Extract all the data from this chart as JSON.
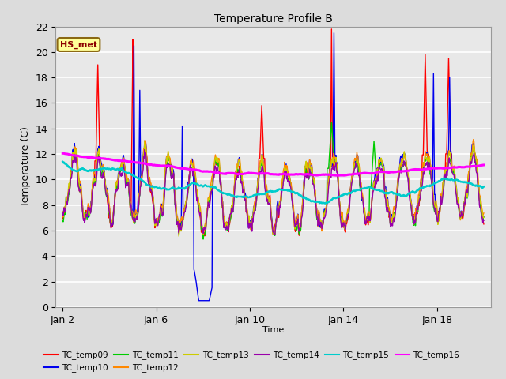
{
  "title": "Temperature Profile B",
  "xlabel": "Time",
  "ylabel": "Temperature (C)",
  "ylim": [
    0,
    22
  ],
  "xtick_days": [
    2,
    6,
    10,
    14,
    18
  ],
  "xtick_labels": [
    "Jan 2",
    "Jan 6",
    "Jan 10",
    "Jan 14",
    "Jan 18"
  ],
  "annotation_text": "HS_met",
  "annotation_bg": "#FFFF99",
  "annotation_edge": "#8B6914",
  "annotation_text_color": "#8B0000",
  "fig_bg": "#DCDCDC",
  "plot_bg": "#E8E8E8",
  "series": [
    {
      "name": "TC_temp09",
      "color": "#FF0000",
      "lw": 1.0
    },
    {
      "name": "TC_temp10",
      "color": "#0000EE",
      "lw": 1.0
    },
    {
      "name": "TC_temp11",
      "color": "#00CC00",
      "lw": 1.0
    },
    {
      "name": "TC_temp12",
      "color": "#FF8800",
      "lw": 1.0
    },
    {
      "name": "TC_temp13",
      "color": "#CCCC00",
      "lw": 1.0
    },
    {
      "name": "TC_temp14",
      "color": "#9900AA",
      "lw": 1.0
    },
    {
      "name": "TC_temp15",
      "color": "#00CCCC",
      "lw": 1.8
    },
    {
      "name": "TC_temp16",
      "color": "#FF00FF",
      "lw": 2.2
    }
  ]
}
